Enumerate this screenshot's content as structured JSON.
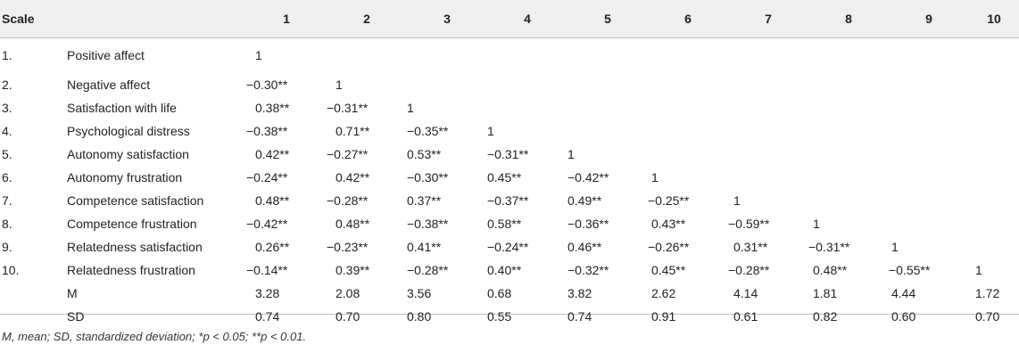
{
  "table": {
    "header": [
      "Scale",
      "1",
      "2",
      "3",
      "4",
      "5",
      "6",
      "7",
      "8",
      "9",
      "10"
    ],
    "rows": [
      {
        "idx": "1.",
        "label": "Positive affect",
        "cells": [
          "1",
          "",
          "",
          "",
          "",
          "",
          "",
          "",
          "",
          ""
        ]
      },
      {
        "idx": "2.",
        "label": "Negative affect",
        "cells": [
          "−0.30**",
          "1",
          "",
          "",
          "",
          "",
          "",
          "",
          "",
          ""
        ]
      },
      {
        "idx": "3.",
        "label": "Satisfaction with life",
        "cells": [
          "0.38**",
          "−0.31**",
          "1",
          "",
          "",
          "",
          "",
          "",
          "",
          ""
        ]
      },
      {
        "idx": "4.",
        "label": "Psychological distress",
        "cells": [
          "−0.38**",
          "0.71**",
          "−0.35**",
          "1",
          "",
          "",
          "",
          "",
          "",
          ""
        ]
      },
      {
        "idx": "5.",
        "label": "Autonomy satisfaction",
        "cells": [
          "0.42**",
          "−0.27**",
          "0.53**",
          "−0.31**",
          "1",
          "",
          "",
          "",
          "",
          ""
        ]
      },
      {
        "idx": "6.",
        "label": "Autonomy frustration",
        "cells": [
          "−0.24**",
          "0.42**",
          "−0.30**",
          "0.45**",
          "−0.42**",
          "1",
          "",
          "",
          "",
          ""
        ]
      },
      {
        "idx": "7.",
        "label": "Competence satisfaction",
        "cells": [
          "0.48**",
          "−0.28**",
          "0.37**",
          "−0.37**",
          "0.49**",
          "−0.25**",
          "1",
          "",
          "",
          ""
        ]
      },
      {
        "idx": "8.",
        "label": "Competence frustration",
        "cells": [
          "−0.42**",
          "0.48**",
          "−0.38**",
          "0.58**",
          "−0.36**",
          "0.43**",
          "−0.59**",
          "1",
          "",
          ""
        ]
      },
      {
        "idx": "9.",
        "label": "Relatedness satisfaction",
        "cells": [
          "0.26**",
          "−0.23**",
          "0.41**",
          "−0.24**",
          "0.46**",
          "−0.26**",
          "0.31**",
          "−0.31**",
          "1",
          ""
        ]
      },
      {
        "idx": "10.",
        "label": "Relatedness frustration",
        "cells": [
          "−0.14**",
          "0.39**",
          "−0.28**",
          "0.40**",
          "−0.32**",
          "0.45**",
          "−0.28**",
          "0.48**",
          "−0.55**",
          "1"
        ]
      },
      {
        "idx": "",
        "label": "M",
        "cells": [
          "3.28",
          "2.08",
          "3.56",
          "0.68",
          "3.82",
          "2.62",
          "4.14",
          "1.81",
          "4.44",
          "1.72"
        ]
      },
      {
        "idx": "",
        "label": "SD",
        "cells": [
          "0.74",
          "0.70",
          "0.80",
          "0.55",
          "0.74",
          "0.91",
          "0.61",
          "0.82",
          "0.60",
          "0.70"
        ]
      }
    ]
  },
  "footnote": "M, mean; SD, standardized deviation; *p < 0.05; **p < 0.01."
}
